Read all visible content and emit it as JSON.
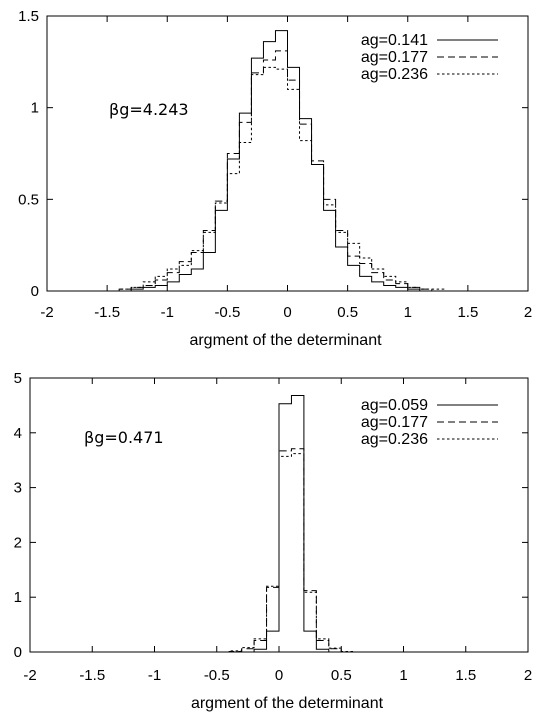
{
  "chart_data": [
    {
      "type": "line",
      "title": "",
      "xlabel": "argment of the determinant",
      "ylabel": "",
      "xlim": [
        -2,
        2
      ],
      "ylim": [
        0,
        1.5
      ],
      "x_ticks": [
        "-2",
        "-1.5",
        "-1",
        "-0.5",
        "0",
        "0.5",
        "1",
        "1.5",
        "2"
      ],
      "y_ticks": [
        "0",
        "0.5",
        "1",
        "1.5"
      ],
      "annotation": "βg=4.243",
      "legend_position": "top-right",
      "bin_width": 0.1,
      "bin_start": -1.5,
      "series": [
        {
          "name": "ag=0.141",
          "style": "solid",
          "values": [
            0.0,
            0.0,
            0.01,
            0.02,
            0.03,
            0.05,
            0.09,
            0.12,
            0.21,
            0.44,
            0.72,
            0.97,
            1.27,
            1.36,
            1.42,
            1.22,
            0.94,
            0.69,
            0.44,
            0.24,
            0.14,
            0.08,
            0.05,
            0.03,
            0.02,
            0.01,
            0.0,
            0.0,
            0.0,
            0.0
          ]
        },
        {
          "name": "ag=0.177",
          "style": "dashed",
          "values": [
            0.0,
            0.01,
            0.02,
            0.03,
            0.06,
            0.1,
            0.16,
            0.21,
            0.33,
            0.49,
            0.75,
            0.92,
            1.19,
            1.26,
            1.31,
            1.15,
            0.91,
            0.71,
            0.5,
            0.33,
            0.19,
            0.15,
            0.1,
            0.06,
            0.04,
            0.02,
            0.01,
            0.0,
            0.0,
            0.0
          ]
        },
        {
          "name": "ag=0.236",
          "style": "dotted",
          "values": [
            0.0,
            0.01,
            0.02,
            0.05,
            0.08,
            0.12,
            0.14,
            0.22,
            0.32,
            0.48,
            0.64,
            0.81,
            1.18,
            1.22,
            1.21,
            1.1,
            0.82,
            0.69,
            0.47,
            0.32,
            0.26,
            0.18,
            0.12,
            0.08,
            0.05,
            0.02,
            0.01,
            0.01,
            0.0,
            0.0
          ]
        }
      ]
    },
    {
      "type": "line",
      "title": "",
      "xlabel": "argment of the determinant",
      "ylabel": "",
      "xlim": [
        -2,
        2
      ],
      "ylim": [
        0,
        5
      ],
      "x_ticks": [
        "-2",
        "-1.5",
        "-1",
        "-0.5",
        "0",
        "0.5",
        "1",
        "1.5",
        "2"
      ],
      "y_ticks": [
        "0",
        "1",
        "2",
        "3",
        "4",
        "5"
      ],
      "y_ticks_visible": [
        "0",
        "1",
        "2",
        "3",
        "4",
        "5"
      ],
      "annotation": "βg=0.471",
      "legend_position": "top-right",
      "bin_width": 0.1,
      "bin_start": -0.5,
      "series": [
        {
          "name": "ag=0.059",
          "style": "solid",
          "values": [
            0.0,
            0.0,
            0.0,
            0.05,
            0.38,
            4.53,
            4.68,
            0.38,
            0.05,
            0.0,
            0.0
          ]
        },
        {
          "name": "ag=0.177",
          "style": "dashed",
          "values": [
            0.0,
            0.01,
            0.06,
            0.21,
            1.18,
            3.67,
            3.71,
            1.12,
            0.21,
            0.06,
            0.0
          ]
        },
        {
          "name": "ag=0.236",
          "style": "dotted",
          "values": [
            0.0,
            0.02,
            0.08,
            0.24,
            1.2,
            3.57,
            3.62,
            1.09,
            0.24,
            0.07,
            0.01
          ]
        }
      ]
    }
  ]
}
